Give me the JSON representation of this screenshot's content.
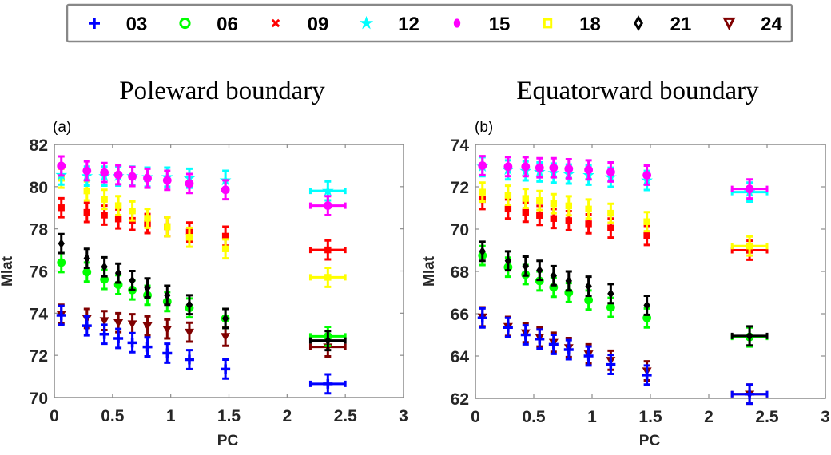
{
  "chart_data": {
    "type": "scatter",
    "legend": {
      "placement": "top",
      "entries": [
        {
          "label": "03",
          "color": "#0000ff",
          "marker": "plus"
        },
        {
          "label": "06",
          "color": "#00ff00",
          "marker": "circle"
        },
        {
          "label": "09",
          "color": "#ff0000",
          "marker": "x"
        },
        {
          "label": "12",
          "color": "#00ffff",
          "marker": "star"
        },
        {
          "label": "15",
          "color": "#ff00ff",
          "marker": "dot"
        },
        {
          "label": "18",
          "color": "#ffff00",
          "marker": "square"
        },
        {
          "label": "21",
          "color": "#000000",
          "marker": "diamond"
        },
        {
          "label": "24",
          "color": "#800000",
          "marker": "triangle-down"
        }
      ]
    },
    "panels": [
      {
        "panel_label": "(a)",
        "title": "Poleward boundary",
        "xlabel": "PC",
        "ylabel": "Mlat",
        "xlim": [
          0,
          3
        ],
        "ylim": [
          70,
          82
        ],
        "xticks": [
          "0",
          "0.5",
          "1",
          "1.5",
          "2",
          "2.5",
          "3"
        ],
        "xtick_values": [
          0,
          0.5,
          1,
          1.5,
          2,
          2.5,
          3
        ],
        "yticks": [
          "70",
          "72",
          "74",
          "76",
          "78",
          "80",
          "82"
        ],
        "ytick_values": [
          70,
          72,
          74,
          76,
          78,
          80,
          82
        ],
        "x": [
          0.06,
          0.28,
          0.43,
          0.55,
          0.67,
          0.8,
          0.97,
          1.16,
          1.47,
          2.35
        ],
        "x_err_last": [
          2.2,
          2.5
        ],
        "series": [
          {
            "name": "03",
            "values": [
              73.9,
              73.4,
              73.0,
              72.8,
              72.6,
              72.4,
              72.1,
              71.8,
              71.35,
              70.65
            ],
            "err": 0.45
          },
          {
            "name": "06",
            "values": [
              76.4,
              75.95,
              75.6,
              75.35,
              75.1,
              74.85,
              74.55,
              74.25,
              73.75,
              72.9
            ],
            "err": 0.45
          },
          {
            "name": "09",
            "values": [
              79.0,
              78.78,
              78.65,
              78.47,
              78.4,
              78.25,
              78.1,
              77.85,
              77.65,
              77.0
            ],
            "err": 0.45
          },
          {
            "name": "12",
            "values": [
              80.55,
              80.5,
              80.5,
              80.5,
              80.5,
              80.45,
              80.45,
              80.4,
              80.3,
              79.8
            ],
            "err": 0.45
          },
          {
            "name": "15",
            "values": [
              80.98,
              80.75,
              80.67,
              80.56,
              80.48,
              80.4,
              80.3,
              80.15,
              79.85,
              79.1
            ],
            "err": 0.45
          },
          {
            "name": "18",
            "values": [
              80.4,
              79.8,
              79.4,
              79.1,
              78.85,
              78.5,
              78.1,
              77.6,
              77.05,
              75.7
            ],
            "err": 0.45
          },
          {
            "name": "21",
            "values": [
              77.3,
              76.6,
              76.2,
              75.9,
              75.55,
              75.2,
              74.85,
              74.4,
              73.75,
              72.7
            ],
            "err": 0.45
          },
          {
            "name": "24",
            "values": [
              73.95,
              73.75,
              73.65,
              73.55,
              73.5,
              73.4,
              73.25,
              73.1,
              72.9,
              72.4
            ],
            "err": 0.45
          }
        ]
      },
      {
        "panel_label": "(b)",
        "title": "Equatorward boundary",
        "xlabel": "PC",
        "ylabel": "Mlat",
        "xlim": [
          0,
          3
        ],
        "ylim": [
          62,
          74
        ],
        "xticks": [
          "0",
          "0.5",
          "1",
          "1.5",
          "2",
          "2.5",
          "3"
        ],
        "xtick_values": [
          0,
          0.5,
          1,
          1.5,
          2,
          2.5,
          3
        ],
        "yticks": [
          "62",
          "64",
          "66",
          "68",
          "70",
          "72",
          "74"
        ],
        "ytick_values": [
          62,
          64,
          66,
          68,
          70,
          72,
          74
        ],
        "x": [
          0.06,
          0.28,
          0.43,
          0.55,
          0.67,
          0.8,
          0.97,
          1.16,
          1.47,
          2.35
        ],
        "x_err_last": [
          2.2,
          2.5
        ],
        "series": [
          {
            "name": "03",
            "values": [
              65.8,
              65.35,
              65.0,
              64.8,
              64.55,
              64.3,
              64.0,
              63.6,
              63.1,
              62.2
            ],
            "err": 0.45
          },
          {
            "name": "06",
            "values": [
              68.75,
              68.2,
              67.85,
              67.55,
              67.25,
              67.0,
              66.65,
              66.3,
              65.8,
              64.9
            ],
            "err": 0.45
          },
          {
            "name": "09",
            "values": [
              71.4,
              70.95,
              70.8,
              70.65,
              70.5,
              70.4,
              70.25,
              70.05,
              69.7,
              69.0
            ],
            "err": 0.45
          },
          {
            "name": "12",
            "values": [
              72.95,
              72.8,
              72.75,
              72.7,
              72.65,
              72.6,
              72.55,
              72.45,
              72.3,
              71.75
            ],
            "err": 0.45
          },
          {
            "name": "15",
            "values": [
              73.0,
              72.95,
              72.95,
              72.9,
              72.9,
              72.85,
              72.8,
              72.7,
              72.55,
              71.9
            ],
            "err": 0.45
          },
          {
            "name": "18",
            "values": [
              71.75,
              71.6,
              71.45,
              71.35,
              71.2,
              71.1,
              70.95,
              70.75,
              70.35,
              69.2
            ],
            "err": 0.45
          },
          {
            "name": "21",
            "values": [
              68.95,
              68.5,
              68.25,
              68.05,
              67.8,
              67.55,
              67.3,
              66.95,
              66.4,
              64.95
            ],
            "err": 0.45
          },
          {
            "name": "24",
            "values": [
              65.85,
              65.4,
              65.1,
              64.9,
              64.65,
              64.4,
              64.1,
              63.8,
              63.3,
              62.2
            ],
            "err": 0.45
          }
        ]
      }
    ]
  }
}
